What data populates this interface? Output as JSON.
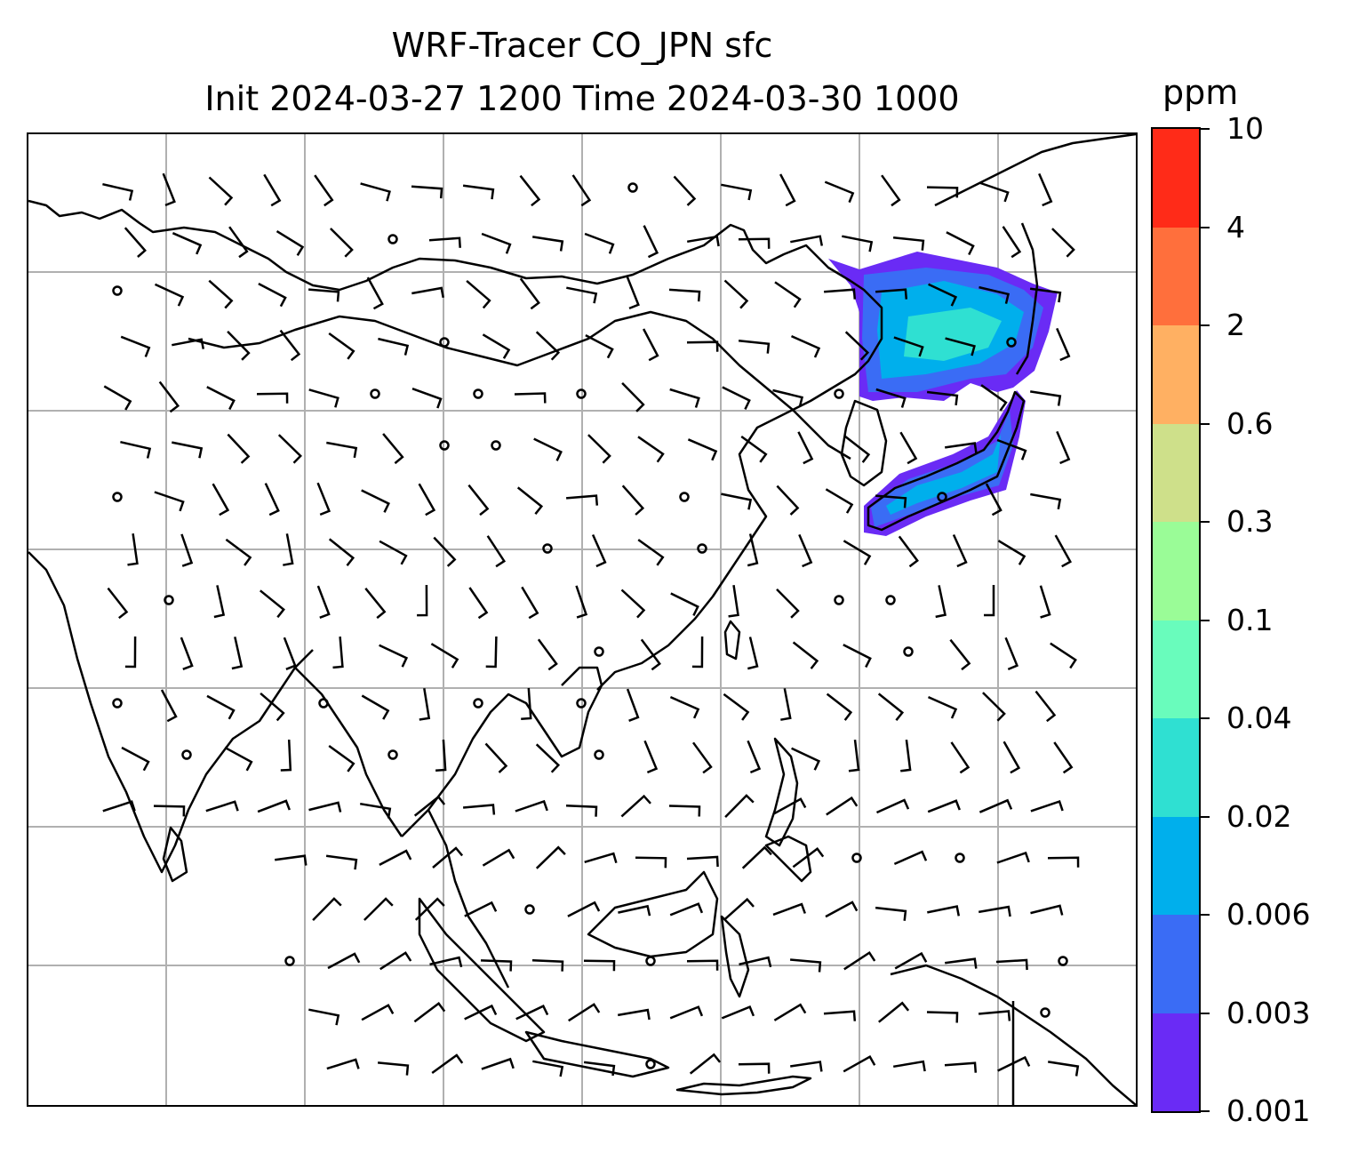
{
  "title": {
    "line1": "WRF-Tracer CO_JPN sfc",
    "line2": "Init 2024-03-27 1200 Time 2024-03-30 1000"
  },
  "colorbar": {
    "unit": "ppm",
    "levels": [
      "0.001",
      "0.003",
      "0.006",
      "0.02",
      "0.04",
      "0.1",
      "0.3",
      "0.6",
      "2",
      "4",
      "10"
    ],
    "colors": [
      "#6a2bf5",
      "#3a6cf5",
      "#00afec",
      "#2fe0d2",
      "#69fcbc",
      "#9afc97",
      "#cee08a",
      "#ffb062",
      "#ff6f3c",
      "#ff2b18"
    ]
  },
  "map": {
    "projection": "PlateCarree",
    "extent_lon": [
      60,
      140
    ],
    "extent_lat": [
      -15,
      55
    ],
    "gridlines_lon": [
      70,
      80,
      90,
      100,
      110,
      120,
      130
    ],
    "gridlines_lat": [
      -5,
      5,
      15,
      25,
      35,
      45
    ],
    "grid_color": "#b0b0b0",
    "coastline_color": "#000000",
    "tracer_regions": [
      {
        "name": "northeast-china-plume",
        "level": "0.006-0.04"
      },
      {
        "name": "japan-plume",
        "level": "0.006-0.04"
      }
    ],
    "wind_barbs": "present"
  }
}
